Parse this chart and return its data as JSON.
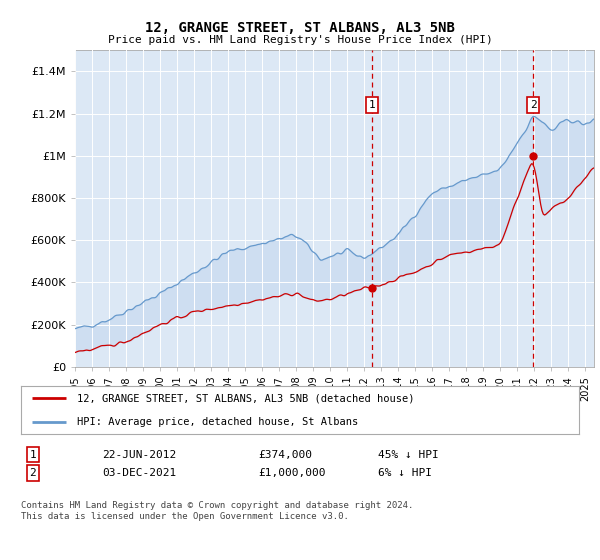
{
  "title": "12, GRANGE STREET, ST ALBANS, AL3 5NB",
  "subtitle": "Price paid vs. HM Land Registry's House Price Index (HPI)",
  "plot_bg_color": "#dce8f5",
  "fill_color": "#dce8f5",
  "hpi_color": "#6699cc",
  "price_color": "#cc0000",
  "dashed_line_color": "#cc0000",
  "ylabel_ticks": [
    "£0",
    "£200K",
    "£400K",
    "£600K",
    "£800K",
    "£1M",
    "£1.2M",
    "£1.4M"
  ],
  "ytick_values": [
    0,
    200000,
    400000,
    600000,
    800000,
    1000000,
    1200000,
    1400000
  ],
  "ylim": [
    0,
    1500000
  ],
  "xlim_start": 1995.0,
  "xlim_end": 2025.5,
  "marker1_date": 2012.47,
  "marker2_date": 2021.92,
  "marker1_price": 374000,
  "marker2_price": 1000000,
  "legend_label1": "12, GRANGE STREET, ST ALBANS, AL3 5NB (detached house)",
  "legend_label2": "HPI: Average price, detached house, St Albans",
  "table_row1": [
    "1",
    "22-JUN-2012",
    "£374,000",
    "45% ↓ HPI"
  ],
  "table_row2": [
    "2",
    "03-DEC-2021",
    "£1,000,000",
    "6% ↓ HPI"
  ],
  "footer": "Contains HM Land Registry data © Crown copyright and database right 2024.\nThis data is licensed under the Open Government Licence v3.0.",
  "xtick_years": [
    1995,
    1996,
    1997,
    1998,
    1999,
    2000,
    2001,
    2002,
    2003,
    2004,
    2005,
    2006,
    2007,
    2008,
    2009,
    2010,
    2011,
    2012,
    2013,
    2014,
    2015,
    2016,
    2017,
    2018,
    2019,
    2020,
    2021,
    2022,
    2023,
    2024,
    2025
  ]
}
